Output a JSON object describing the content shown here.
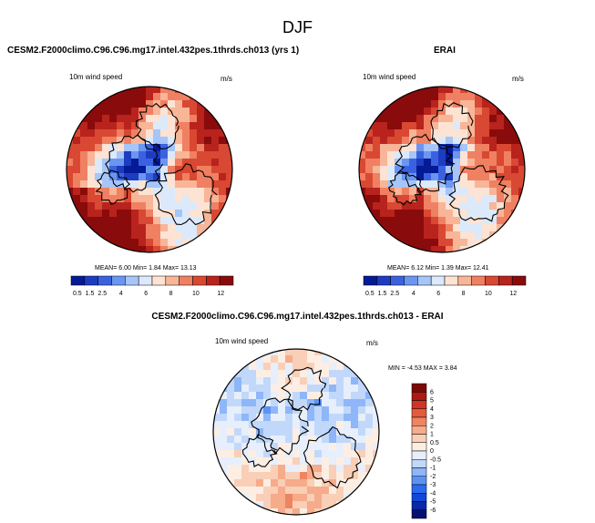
{
  "page": {
    "title": "DJF",
    "diff_title": "CESM2.F2000climo.C96.C96.mg17.intel.432pes.1thrds.ch013 - ERAI"
  },
  "colors": {
    "abs_scale": [
      "#051a95",
      "#1d3cc0",
      "#3a62e0",
      "#6a96f2",
      "#a6c5f8",
      "#dbe9fb",
      "#fde3d3",
      "#f8b597",
      "#f08062",
      "#d94832",
      "#b8231d",
      "#8a0b0b"
    ],
    "diff_scale": [
      "#05106e",
      "#0828a8",
      "#1048d8",
      "#2a6cf0",
      "#5b93f5",
      "#8eb6f8",
      "#c2d8fa",
      "#e6effb",
      "#fdeee4",
      "#f9cfb7",
      "#f6ab8a",
      "#ef8460",
      "#e35a3c",
      "#cf3522",
      "#ad1a14",
      "#7a0a08"
    ]
  },
  "chart_data": [
    {
      "type": "heatmap",
      "title": "CESM2.F2000climo.C96.C96.mg17.intel.432pes.1thrds.ch013 (yrs 1)",
      "variable": "10m wind speed",
      "units": "m/s",
      "stats": {
        "mean_label": "MEAN=",
        "mean": "6.00",
        "min_label": "Min=",
        "min": "1.84",
        "max_label": "Max=",
        "max": "13.13"
      },
      "colorbar": {
        "orientation": "horizontal",
        "tick_labels": [
          "0.5",
          "1.5",
          "2.5",
          "4",
          "6",
          "8",
          "10",
          "12"
        ],
        "range": [
          0,
          13
        ]
      }
    },
    {
      "type": "heatmap",
      "title": "ERAI",
      "variable": "10m wind speed",
      "units": "m/s",
      "stats": {
        "mean_label": "MEAN=",
        "mean": "6.12",
        "min_label": "Min=",
        "min": "1.39",
        "max_label": "Max=",
        "max": "12.41"
      },
      "colorbar": {
        "orientation": "horizontal",
        "tick_labels": [
          "0.5",
          "1.5",
          "2.5",
          "4",
          "6",
          "8",
          "10",
          "12"
        ],
        "range": [
          0,
          13
        ]
      }
    },
    {
      "type": "heatmap",
      "title": "CESM2.F2000climo.C96.C96.mg17.intel.432pes.1thrds.ch013 - ERAI",
      "variable": "10m wind speed",
      "units": "m/s",
      "stats": {
        "min_label": "MIN =",
        "min": "-4.53",
        "max_label": "MAX =",
        "max": "3.84"
      },
      "colorbar": {
        "orientation": "vertical",
        "tick_labels": [
          "6",
          "5",
          "4",
          "3",
          "2",
          "1",
          "0.5",
          "0",
          "-0.5",
          "-1",
          "-2",
          "-3",
          "-4",
          "-5",
          "-6"
        ],
        "range": [
          -6,
          6
        ]
      }
    }
  ]
}
